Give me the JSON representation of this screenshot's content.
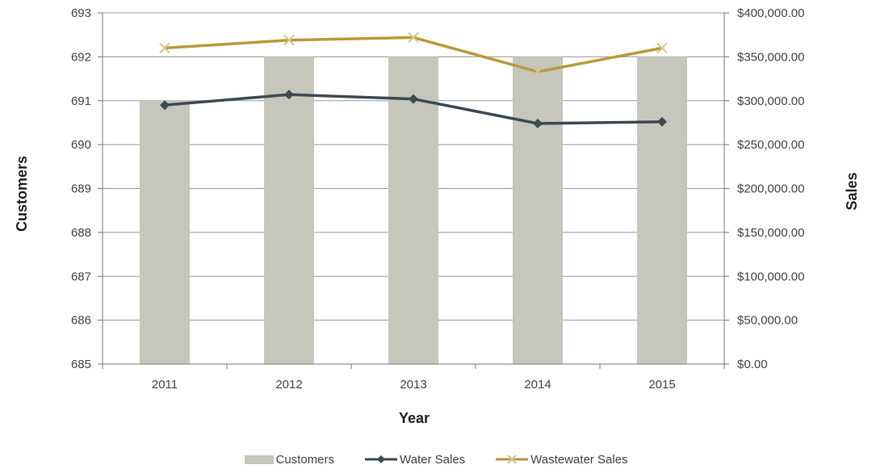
{
  "chart_data": {
    "type": "bar",
    "xlabel": "Year",
    "ylabel_left": "Customers",
    "ylabel_right": "Sales",
    "categories": [
      "2011",
      "2012",
      "2013",
      "2014",
      "2015"
    ],
    "left_axis": {
      "ylim": [
        685,
        693
      ],
      "ticks": [
        "685",
        "686",
        "687",
        "688",
        "689",
        "690",
        "691",
        "692",
        "693"
      ]
    },
    "right_axis": {
      "ylim": [
        0,
        400000
      ],
      "ticks": [
        "$0.00",
        "$50,000.00",
        "$100,000.00",
        "$150,000.00",
        "$200,000.00",
        "$250,000.00",
        "$300,000.00",
        "$350,000.00",
        "$400,000.00"
      ]
    },
    "grid": true,
    "legend_position": "bottom",
    "series": [
      {
        "name": "Customers",
        "kind": "bar",
        "axis": "left",
        "color": "#c6c6bd",
        "values": [
          691,
          692,
          692,
          692,
          692
        ]
      },
      {
        "name": "Water Sales",
        "kind": "line",
        "axis": "right",
        "marker": "diamond",
        "color": "#3d4a52",
        "values": [
          295000,
          307000,
          302000,
          274000,
          276000
        ]
      },
      {
        "name": "Wastewater Sales",
        "kind": "line",
        "axis": "right",
        "marker": "x",
        "color": "#b99a3c",
        "values": [
          360000,
          369000,
          372000,
          333000,
          360000
        ]
      }
    ]
  }
}
